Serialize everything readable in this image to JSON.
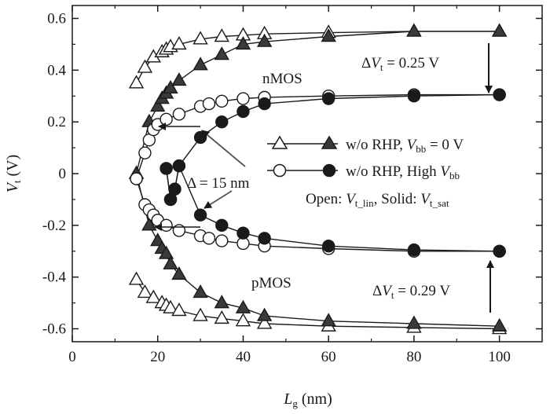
{
  "chart_data": {
    "type": "scatter",
    "xlabel": "L_g (nm)",
    "ylabel": "V_t (V)",
    "xlim": [
      0,
      110
    ],
    "ylim": [
      -0.65,
      0.65
    ],
    "x_ticks": [
      0,
      20,
      40,
      60,
      80,
      100
    ],
    "y_ticks": [
      0.6,
      0.4,
      0.2,
      0,
      -0.2,
      -0.4,
      -0.6
    ],
    "x_tick_labels": [
      "0",
      "20",
      "40",
      "60",
      "80",
      "100"
    ],
    "y_tick_labels": [
      "0.6",
      "0.4",
      "0.2",
      "0",
      "-0.2",
      "-0.4",
      "-0.6"
    ],
    "grid": false,
    "legend_position": "right",
    "legend": [
      {
        "label_parts": [
          "w/o RHP, ",
          "V",
          "bb",
          " = 0 V"
        ],
        "marker": "triangle"
      },
      {
        "label_parts": [
          "w/o RHP, High ",
          "V",
          "bb",
          ""
        ],
        "marker": "circle"
      }
    ],
    "legend_note": {
      "parts": [
        "Open: ",
        "V",
        "t_lin",
        ", Solid: ",
        "V",
        "t_sat"
      ]
    },
    "annotations": {
      "nmos": "nMOS",
      "pmos": "pMOS",
      "delta_nm": "Δ = 15 nm",
      "dvt_n": {
        "prefix": "Δ",
        "var": "V",
        "sub": "t",
        "value": " = 0.25 V"
      },
      "dvt_p": {
        "prefix": "Δ",
        "var": "V",
        "sub": "t",
        "value": " = 0.29 V"
      }
    },
    "series": [
      {
        "marker": "triangle",
        "fill": "open",
        "x": [
          15,
          17,
          19,
          21,
          22,
          23,
          25,
          30,
          35,
          40,
          45,
          60,
          80,
          100
        ],
        "y": [
          0.35,
          0.41,
          0.45,
          0.47,
          0.48,
          0.49,
          0.5,
          0.52,
          0.53,
          0.535,
          0.54,
          0.545,
          0.55,
          0.55
        ]
      },
      {
        "marker": "triangle",
        "fill": "solid",
        "x": [
          15,
          18,
          20,
          21,
          22,
          23,
          25,
          30,
          35,
          40,
          45,
          60,
          80,
          100
        ],
        "y": [
          0,
          0.2,
          0.26,
          0.29,
          0.31,
          0.33,
          0.36,
          0.42,
          0.46,
          0.5,
          0.51,
          0.53,
          0.55,
          0.55
        ]
      },
      {
        "marker": "circle",
        "fill": "open",
        "x": [
          15,
          17,
          18,
          19,
          20,
          22,
          25,
          30,
          32,
          35,
          40,
          45,
          60,
          80,
          100
        ],
        "y": [
          -0.02,
          0.08,
          0.13,
          0.17,
          0.19,
          0.21,
          0.23,
          0.26,
          0.27,
          0.28,
          0.29,
          0.295,
          0.3,
          0.305,
          0.305
        ]
      },
      {
        "marker": "circle",
        "fill": "solid",
        "x": [
          22,
          23,
          24,
          25,
          30,
          35,
          40,
          45,
          60,
          80,
          100
        ],
        "y": [
          0.02,
          -0.1,
          -0.06,
          0.03,
          0.14,
          0.2,
          0.24,
          0.27,
          0.29,
          0.3,
          0.305
        ]
      },
      {
        "marker": "triangle",
        "fill": "open",
        "x": [
          15,
          17,
          19,
          21,
          22,
          23,
          25,
          30,
          35,
          40,
          45,
          60,
          80,
          100
        ],
        "y": [
          -0.41,
          -0.46,
          -0.48,
          -0.5,
          -0.51,
          -0.52,
          -0.53,
          -0.55,
          -0.56,
          -0.57,
          -0.58,
          -0.59,
          -0.595,
          -0.6
        ]
      },
      {
        "marker": "triangle",
        "fill": "solid",
        "x": [
          15,
          18,
          20,
          21,
          22,
          23,
          25,
          30,
          35,
          40,
          45,
          60,
          80,
          100
        ],
        "y": [
          0,
          -0.2,
          -0.26,
          -0.29,
          -0.31,
          -0.35,
          -0.39,
          -0.46,
          -0.5,
          -0.52,
          -0.55,
          -0.57,
          -0.58,
          -0.59
        ]
      },
      {
        "marker": "circle",
        "fill": "open",
        "x": [
          15,
          17,
          18,
          19,
          20,
          22,
          25,
          30,
          32,
          35,
          40,
          45,
          60,
          80,
          100
        ],
        "y": [
          -0.02,
          -0.12,
          -0.14,
          -0.16,
          -0.18,
          -0.2,
          -0.22,
          -0.24,
          -0.25,
          -0.26,
          -0.27,
          -0.28,
          -0.29,
          -0.3,
          -0.3
        ]
      },
      {
        "marker": "circle",
        "fill": "solid",
        "x": [
          22,
          23,
          24,
          25,
          30,
          35,
          40,
          45,
          60,
          80,
          100
        ],
        "y": [
          0.02,
          -0.1,
          -0.06,
          0.03,
          -0.16,
          -0.2,
          -0.23,
          -0.25,
          -0.28,
          -0.295,
          -0.3
        ]
      }
    ]
  }
}
